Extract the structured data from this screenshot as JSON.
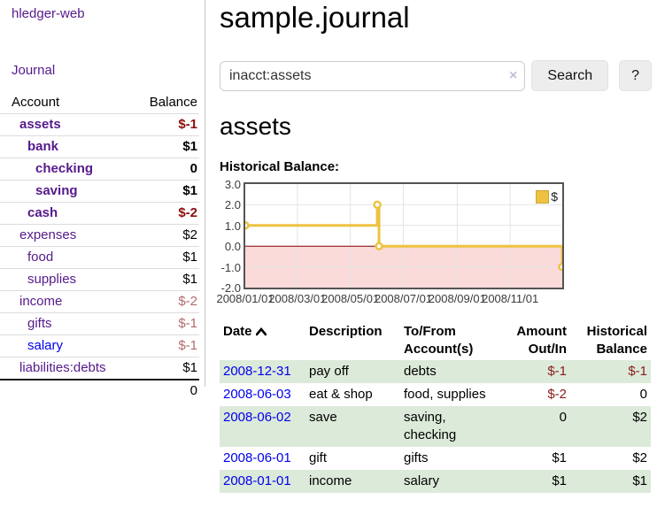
{
  "app": {
    "title": "hledger-web"
  },
  "sidebar": {
    "nav_journal": "Journal",
    "accounts": {
      "col_account": "Account",
      "col_balance": "Balance",
      "rows": [
        {
          "label": "assets",
          "balance": "$-1",
          "indent": 1,
          "bold": true,
          "neg": "strong",
          "link": "visited"
        },
        {
          "label": "bank",
          "balance": "$1",
          "indent": 2,
          "bold": true,
          "neg": null,
          "link": "visited"
        },
        {
          "label": "checking",
          "balance": "0",
          "indent": 3,
          "bold": true,
          "neg": null,
          "link": "visited"
        },
        {
          "label": "saving",
          "balance": "$1",
          "indent": 3,
          "bold": true,
          "neg": null,
          "link": "visited"
        },
        {
          "label": "cash",
          "balance": "$-2",
          "indent": 2,
          "bold": true,
          "neg": "strong",
          "link": "visited"
        },
        {
          "label": "expenses",
          "balance": "$2",
          "indent": 1,
          "bold": false,
          "neg": null,
          "link": "visited"
        },
        {
          "label": "food",
          "balance": "$1",
          "indent": 2,
          "bold": false,
          "neg": null,
          "link": "visited"
        },
        {
          "label": "supplies",
          "balance": "$1",
          "indent": 2,
          "bold": false,
          "neg": null,
          "link": "visited"
        },
        {
          "label": "income",
          "balance": "$-2",
          "indent": 1,
          "bold": false,
          "neg": "muted",
          "link": "visited"
        },
        {
          "label": "gifts",
          "balance": "$-1",
          "indent": 2,
          "bold": false,
          "neg": "muted",
          "link": "visited"
        },
        {
          "label": "salary",
          "balance": "$-1",
          "indent": 2,
          "bold": false,
          "neg": "muted",
          "link": "unvisited"
        },
        {
          "label": "liabilities:debts",
          "balance": "$1",
          "indent": 1,
          "bold": false,
          "neg": null,
          "link": "visited"
        }
      ],
      "total": "0"
    }
  },
  "main": {
    "title": "sample.journal",
    "search": {
      "value": "inacct:assets",
      "clear_icon": "×",
      "search_button": "Search",
      "help_button": "?"
    },
    "account_heading": "assets",
    "chart_title": "Historical Balance:"
  },
  "chart_data": {
    "type": "line",
    "title": "Historical Balance:",
    "step": true,
    "series": [
      {
        "name": "$",
        "color": "#edc240",
        "points": [
          [
            "2008-01-01",
            1
          ],
          [
            "2008-06-01",
            2
          ],
          [
            "2008-06-03",
            0
          ],
          [
            "2008-12-31",
            -1
          ]
        ]
      }
    ],
    "xlim": [
      "2008-01-01",
      "2008-12-31"
    ],
    "ylim": [
      -2,
      3
    ],
    "y_ticks": [
      "3.0",
      "2.0",
      "1.0",
      "0.0",
      "-1.0",
      "-2.0"
    ],
    "x_ticks": [
      "2008/01/01",
      "2008/03/01",
      "2008/05/01",
      "2008/07/01",
      "2008/09/01",
      "2008/11/01"
    ],
    "grid": true,
    "legend_position": "top-right",
    "negative_region_color": "#fbdada",
    "zero_line_color": "#8b0000",
    "grid_color": "#e4e4e4",
    "border_color": "#545454"
  },
  "register": {
    "headers": {
      "date": "Date",
      "description": "Description",
      "tofrom": "To/From Account(s)",
      "amount": "Amount Out/In",
      "balance": "Historical Balance"
    },
    "rows": [
      {
        "date": "2008-12-31",
        "description": "pay off",
        "accounts": "debts",
        "amount": "$-1",
        "balance": "$-1"
      },
      {
        "date": "2008-06-03",
        "description": "eat & shop",
        "accounts": "food, supplies",
        "amount": "$-2",
        "balance": "0"
      },
      {
        "date": "2008-06-02",
        "description": "save",
        "accounts": "saving, checking",
        "amount": "0",
        "balance": "$2"
      },
      {
        "date": "2008-06-01",
        "description": "gift",
        "accounts": "gifts",
        "amount": "$1",
        "balance": "$2"
      },
      {
        "date": "2008-01-01",
        "description": "income",
        "accounts": "salary",
        "amount": "$1",
        "balance": "$1"
      }
    ]
  }
}
